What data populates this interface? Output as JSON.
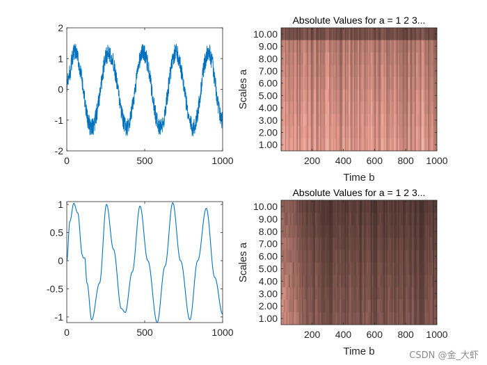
{
  "watermark": "CSDN @金_大虾",
  "chart_data": [
    {
      "id": "noisy-signal",
      "type": "line",
      "title": "",
      "xlabel": "",
      "ylabel": "",
      "xlim": [
        0,
        1000
      ],
      "ylim": [
        -2,
        2
      ],
      "xticks": [
        0,
        500,
        1000
      ],
      "yticks": [
        -2,
        -1,
        0,
        1,
        2
      ],
      "color": "#0072BD",
      "description_of_signal": {
        "periods": [
          {
            "x": 0,
            "y": 0.2
          },
          {
            "x": 50,
            "y": 1.2
          },
          {
            "x": 160,
            "y": -1.25
          },
          {
            "x": 270,
            "y": 1.2
          },
          {
            "x": 385,
            "y": -1.25
          },
          {
            "x": 490,
            "y": 1.2
          },
          {
            "x": 600,
            "y": -1.25
          },
          {
            "x": 700,
            "y": 1.2
          },
          {
            "x": 810,
            "y": -1.25
          },
          {
            "x": 910,
            "y": 1.2
          },
          {
            "x": 1000,
            "y": -1.0
          }
        ],
        "noise_amplitude": 0.3
      }
    },
    {
      "id": "cwt-top",
      "type": "heatmap",
      "title": "Absolute Values for a =  1 2 3...",
      "xlabel": "Time b",
      "ylabel": "Scales a",
      "xlim": [
        1,
        1000
      ],
      "ylim": [
        0.5,
        10.5
      ],
      "xticks": [
        200,
        400,
        600,
        800,
        1000
      ],
      "yticks": [
        1,
        2,
        3,
        4,
        5,
        6,
        7,
        8,
        9,
        10
      ],
      "ytick_labels": [
        "1.00",
        "2.00",
        "3.00",
        "4.00",
        "5.00",
        "6.00",
        "7.00",
        "8.00",
        "9.00",
        "10.00"
      ],
      "colormap": "pink",
      "intensity": "high"
    },
    {
      "id": "smooth-signal",
      "type": "line",
      "title": "",
      "xlabel": "",
      "ylabel": "",
      "xlim": [
        0,
        1000
      ],
      "ylim": [
        -1.1,
        1.05
      ],
      "xticks": [
        0,
        500,
        1000
      ],
      "yticks": [
        -1,
        -0.5,
        0,
        0.5,
        1
      ],
      "ytick_labels": [
        "-1",
        "-0.5",
        "0",
        "0.5",
        "1"
      ],
      "color": "#0072BD",
      "points": [
        {
          "x": 0,
          "y": 0.0
        },
        {
          "x": 20,
          "y": 0.7
        },
        {
          "x": 45,
          "y": 1.02
        },
        {
          "x": 70,
          "y": 0.85
        },
        {
          "x": 100,
          "y": 0.1
        },
        {
          "x": 105,
          "y": 0.05
        },
        {
          "x": 115,
          "y": 0.05
        },
        {
          "x": 130,
          "y": -0.4
        },
        {
          "x": 160,
          "y": -1.05
        },
        {
          "x": 210,
          "y": -0.4
        },
        {
          "x": 255,
          "y": 1.0
        },
        {
          "x": 300,
          "y": 0.2
        },
        {
          "x": 350,
          "y": -0.85
        },
        {
          "x": 375,
          "y": -0.92
        },
        {
          "x": 420,
          "y": -0.2
        },
        {
          "x": 470,
          "y": 0.97
        },
        {
          "x": 520,
          "y": 0.0
        },
        {
          "x": 580,
          "y": -1.1
        },
        {
          "x": 630,
          "y": -0.1
        },
        {
          "x": 680,
          "y": 1.03
        },
        {
          "x": 730,
          "y": 0.0
        },
        {
          "x": 790,
          "y": -1.05
        },
        {
          "x": 840,
          "y": 0.0
        },
        {
          "x": 895,
          "y": 0.93
        },
        {
          "x": 950,
          "y": -0.3
        },
        {
          "x": 1000,
          "y": -0.95
        }
      ]
    },
    {
      "id": "cwt-bottom",
      "type": "heatmap",
      "title": "Absolute Values for a =  1 2 3...",
      "xlabel": "Time b",
      "ylabel": "Scales a",
      "xlim": [
        1,
        1000
      ],
      "ylim": [
        0.5,
        10.5
      ],
      "xticks": [
        200,
        400,
        600,
        800,
        1000
      ],
      "yticks": [
        1,
        2,
        3,
        4,
        5,
        6,
        7,
        8,
        9,
        10
      ],
      "ytick_labels": [
        "1.00",
        "2.00",
        "3.00",
        "4.00",
        "5.00",
        "6.00",
        "7.00",
        "8.00",
        "9.00",
        "10.00"
      ],
      "colormap": "pink",
      "intensity": "low"
    }
  ]
}
